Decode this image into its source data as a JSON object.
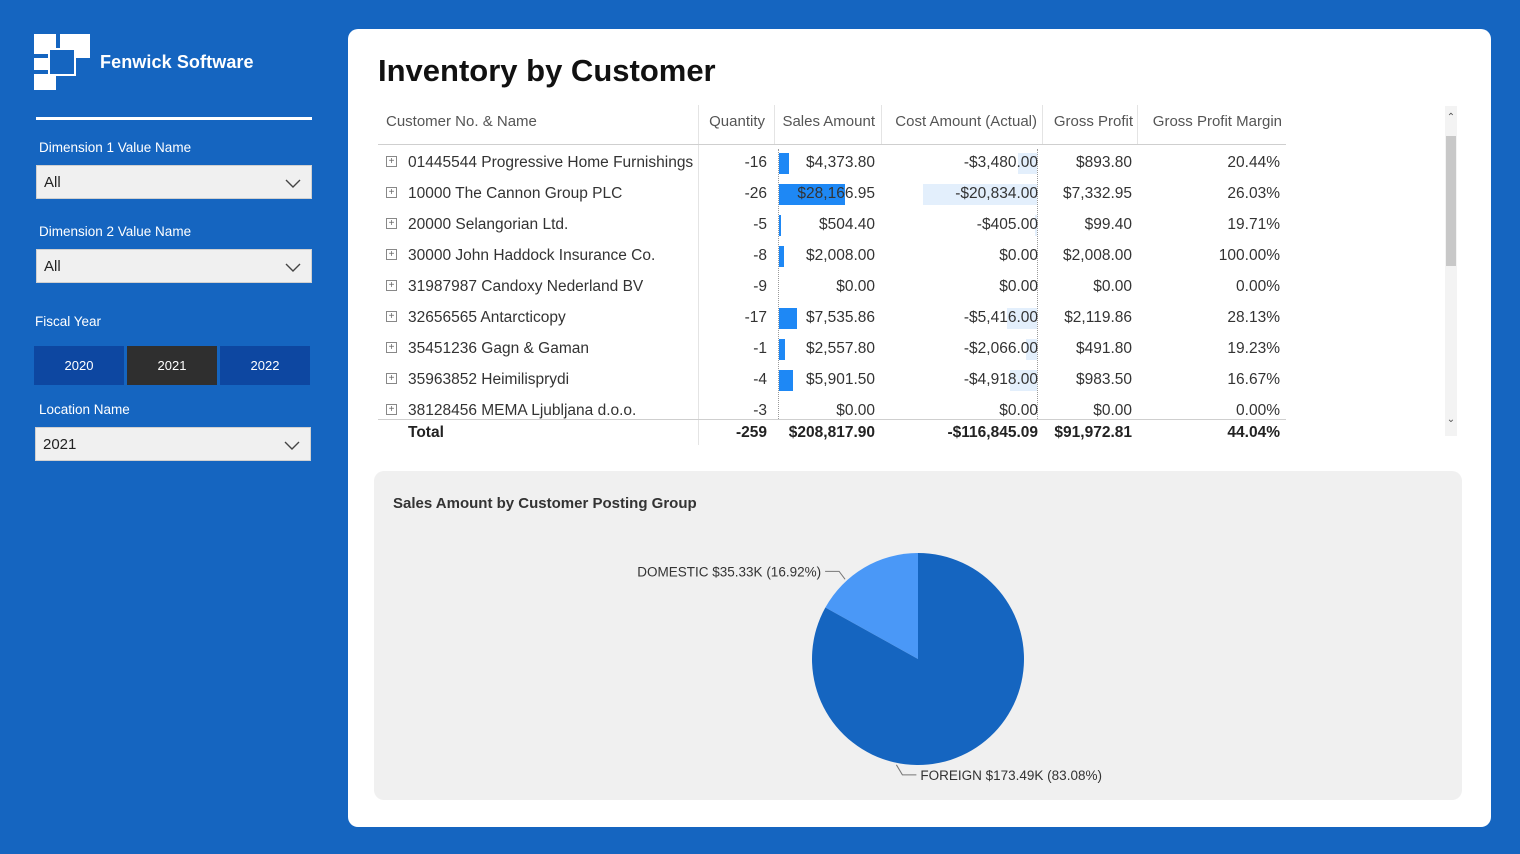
{
  "brand": {
    "name": "Fenwick Software"
  },
  "filters": {
    "dimension1": {
      "label": "Dimension 1 Value Name",
      "value": "All"
    },
    "dimension2": {
      "label": "Dimension 2 Value Name",
      "value": "All"
    },
    "fiscal_year": {
      "label": "Fiscal Year",
      "options": [
        "2020",
        "2021",
        "2022"
      ],
      "selected": "2021"
    },
    "location": {
      "label": "Location Name",
      "value": "2021"
    }
  },
  "page": {
    "title": "Inventory by Customer"
  },
  "table": {
    "columns": [
      "Customer No. & Name",
      "Quantity",
      "Sales Amount",
      "Cost Amount (Actual)",
      "Gross Profit",
      "Gross Profit Margin"
    ],
    "rows": [
      {
        "name": "01445544 Progressive Home Furnishings",
        "quantity": "-16",
        "sales": "$4,373.80",
        "cost": "-$3,480.00",
        "profit": "$893.80",
        "margin": "20.44%",
        "sales_value": 4373.8,
        "cost_value": 3480.0
      },
      {
        "name": "10000 The Cannon Group PLC",
        "quantity": "-26",
        "sales": "$28,166.95",
        "cost": "-$20,834.00",
        "profit": "$7,332.95",
        "margin": "26.03%",
        "sales_value": 28166.95,
        "cost_value": 20834.0
      },
      {
        "name": "20000 Selangorian Ltd.",
        "quantity": "-5",
        "sales": "$504.40",
        "cost": "-$405.00",
        "profit": "$99.40",
        "margin": "19.71%",
        "sales_value": 504.4,
        "cost_value": 405.0
      },
      {
        "name": "30000 John Haddock Insurance Co.",
        "quantity": "-8",
        "sales": "$2,008.00",
        "cost": "$0.00",
        "profit": "$2,008.00",
        "margin": "100.00%",
        "sales_value": 2008.0,
        "cost_value": 0
      },
      {
        "name": "31987987 Candoxy Nederland BV",
        "quantity": "-9",
        "sales": "$0.00",
        "cost": "$0.00",
        "profit": "$0.00",
        "margin": "0.00%",
        "sales_value": 0,
        "cost_value": 0
      },
      {
        "name": "32656565 Antarcticopy",
        "quantity": "-17",
        "sales": "$7,535.86",
        "cost": "-$5,416.00",
        "profit": "$2,119.86",
        "margin": "28.13%",
        "sales_value": 7535.86,
        "cost_value": 5416.0
      },
      {
        "name": "35451236 Gagn & Gaman",
        "quantity": "-1",
        "sales": "$2,557.80",
        "cost": "-$2,066.00",
        "profit": "$491.80",
        "margin": "19.23%",
        "sales_value": 2557.8,
        "cost_value": 2066.0
      },
      {
        "name": "35963852 Heimilisprydi",
        "quantity": "-4",
        "sales": "$5,901.50",
        "cost": "-$4,918.00",
        "profit": "$983.50",
        "margin": "16.67%",
        "sales_value": 5901.5,
        "cost_value": 4918.0
      },
      {
        "name": "38128456 MEMA Ljubljana d.o.o.",
        "quantity": "-3",
        "sales": "$0.00",
        "cost": "$0.00",
        "profit": "$0.00",
        "margin": "0.00%",
        "sales_value": 0,
        "cost_value": 0
      }
    ],
    "total": {
      "label": "Total",
      "quantity": "-259",
      "sales": "$208,817.90",
      "cost": "-$116,845.09",
      "profit": "$91,972.81",
      "margin": "44.04%"
    }
  },
  "pie": {
    "title": "Sales Amount by Customer Posting Group",
    "colors": {
      "DOMESTIC": "#4a98f7",
      "FOREIGN": "#1565c0"
    },
    "chart_data": {
      "type": "pie",
      "title": "Sales Amount by Customer Posting Group",
      "slices": [
        {
          "name": "DOMESTIC",
          "value": 35.33,
          "percent": 16.92,
          "label": "DOMESTIC $35.33K (16.92%)"
        },
        {
          "name": "FOREIGN",
          "value": 173.49,
          "percent": 83.08,
          "label": "FOREIGN $173.49K (83.08%)"
        }
      ]
    }
  }
}
